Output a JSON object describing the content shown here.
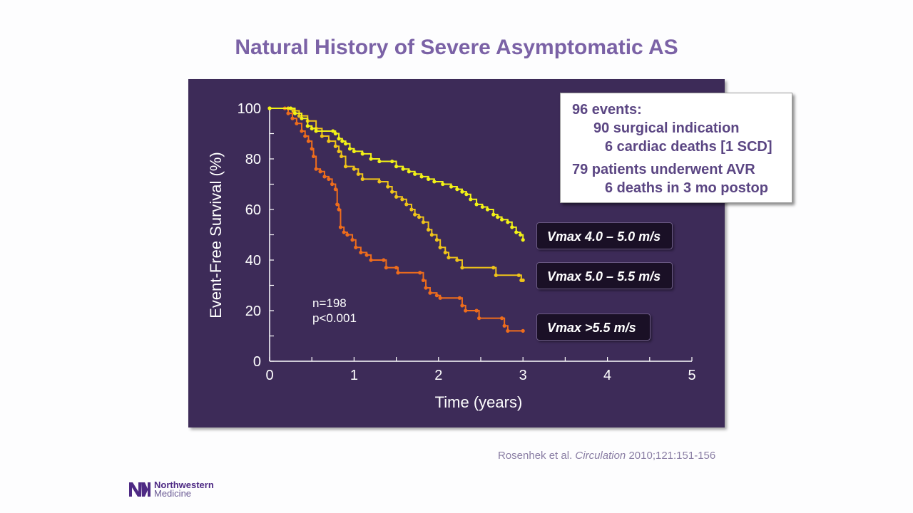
{
  "slide": {
    "title": "Natural History of Severe Asymptomatic AS",
    "citation_authors": "Rosenhek et al. ",
    "citation_journal": "Circulation",
    "citation_ref": " 2010;121:151-156",
    "logo": {
      "line1": "Northwestern",
      "line2": "Medicine",
      "icon": "nm-logo-icon"
    }
  },
  "infobox": {
    "lines": [
      "96 events:",
      "90 surgical indication",
      "6 cardiac deaths [1 SCD]",
      "79 patients underwent AVR",
      "6 deaths in 3 mo postop"
    ]
  },
  "annotation": {
    "n": "n=198",
    "p": "p<0.001"
  },
  "colors": {
    "panel_bg": "#3d2b58",
    "title": "#7b62a6",
    "series1": "#f2f216",
    "series2": "#f0c419",
    "series3": "#ee6c1c"
  },
  "chart_data": {
    "type": "line",
    "subtype": "kaplan-meier step",
    "title": "",
    "xlabel": "Time (years)",
    "ylabel": "Event-Free Survival (%)",
    "xlim": [
      0,
      5
    ],
    "ylim": [
      0,
      100
    ],
    "xticks": [
      0,
      1,
      2,
      3,
      4,
      5
    ],
    "yticks": [
      0,
      20,
      40,
      60,
      80,
      100
    ],
    "grid": false,
    "legend_placement": "right, next to curve ends",
    "series": [
      {
        "name": "Vmax 4.0 – 5.0 m/s",
        "color": "#f2f216",
        "points": [
          [
            0,
            100
          ],
          [
            0.25,
            100
          ],
          [
            0.3,
            98
          ],
          [
            0.38,
            96
          ],
          [
            0.45,
            93
          ],
          [
            0.5,
            92
          ],
          [
            0.55,
            91
          ],
          [
            0.75,
            91
          ],
          [
            0.78,
            90
          ],
          [
            0.82,
            88
          ],
          [
            0.86,
            87
          ],
          [
            0.9,
            86
          ],
          [
            0.95,
            84
          ],
          [
            1.0,
            83
          ],
          [
            1.1,
            82
          ],
          [
            1.2,
            80
          ],
          [
            1.3,
            79
          ],
          [
            1.45,
            79
          ],
          [
            1.5,
            77
          ],
          [
            1.58,
            76
          ],
          [
            1.65,
            75
          ],
          [
            1.72,
            74
          ],
          [
            1.8,
            73
          ],
          [
            1.88,
            72
          ],
          [
            1.95,
            71
          ],
          [
            2.05,
            70
          ],
          [
            2.15,
            69
          ],
          [
            2.22,
            68
          ],
          [
            2.28,
            67
          ],
          [
            2.33,
            66
          ],
          [
            2.38,
            64
          ],
          [
            2.45,
            62
          ],
          [
            2.52,
            61
          ],
          [
            2.58,
            60
          ],
          [
            2.65,
            58
          ],
          [
            2.7,
            57
          ],
          [
            2.75,
            56
          ],
          [
            2.82,
            55
          ],
          [
            2.87,
            53
          ],
          [
            2.92,
            51
          ],
          [
            2.97,
            50
          ],
          [
            3.0,
            48
          ]
        ]
      },
      {
        "name": "Vmax 5.0 – 5.5 m/s",
        "color": "#f0c419",
        "points": [
          [
            0,
            100
          ],
          [
            0.22,
            100
          ],
          [
            0.28,
            99
          ],
          [
            0.35,
            97
          ],
          [
            0.45,
            95
          ],
          [
            0.55,
            92
          ],
          [
            0.62,
            89
          ],
          [
            0.7,
            87
          ],
          [
            0.78,
            85
          ],
          [
            0.82,
            83
          ],
          [
            0.85,
            81
          ],
          [
            0.9,
            77
          ],
          [
            1.0,
            76
          ],
          [
            1.05,
            74
          ],
          [
            1.1,
            72
          ],
          [
            1.3,
            71
          ],
          [
            1.4,
            69
          ],
          [
            1.45,
            67
          ],
          [
            1.5,
            65
          ],
          [
            1.57,
            64
          ],
          [
            1.62,
            62
          ],
          [
            1.68,
            60
          ],
          [
            1.72,
            58
          ],
          [
            1.77,
            57
          ],
          [
            1.82,
            55
          ],
          [
            1.88,
            52
          ],
          [
            1.92,
            50
          ],
          [
            1.98,
            48
          ],
          [
            2.02,
            45
          ],
          [
            2.08,
            43
          ],
          [
            2.12,
            41
          ],
          [
            2.22,
            40
          ],
          [
            2.28,
            37
          ],
          [
            2.65,
            37
          ],
          [
            2.68,
            34
          ],
          [
            2.95,
            34
          ],
          [
            2.98,
            32
          ],
          [
            3.0,
            32
          ]
        ]
      },
      {
        "name": "Vmax >5.5 m/s",
        "color": "#ee6c1c",
        "points": [
          [
            0,
            100
          ],
          [
            0.18,
            100
          ],
          [
            0.22,
            98
          ],
          [
            0.27,
            96
          ],
          [
            0.32,
            94
          ],
          [
            0.38,
            91
          ],
          [
            0.42,
            89
          ],
          [
            0.46,
            87
          ],
          [
            0.5,
            84
          ],
          [
            0.52,
            81
          ],
          [
            0.55,
            76
          ],
          [
            0.6,
            75
          ],
          [
            0.65,
            73
          ],
          [
            0.7,
            72
          ],
          [
            0.74,
            70
          ],
          [
            0.78,
            68
          ],
          [
            0.8,
            62
          ],
          [
            0.82,
            60
          ],
          [
            0.84,
            53
          ],
          [
            0.88,
            51
          ],
          [
            0.92,
            50
          ],
          [
            0.98,
            48
          ],
          [
            1.02,
            45
          ],
          [
            1.08,
            43
          ],
          [
            1.15,
            42
          ],
          [
            1.2,
            40
          ],
          [
            1.35,
            40
          ],
          [
            1.38,
            37
          ],
          [
            1.5,
            37
          ],
          [
            1.52,
            35
          ],
          [
            1.78,
            35
          ],
          [
            1.82,
            32
          ],
          [
            1.85,
            29
          ],
          [
            1.9,
            27
          ],
          [
            1.98,
            26
          ],
          [
            2.02,
            25
          ],
          [
            2.25,
            25
          ],
          [
            2.28,
            22
          ],
          [
            2.32,
            20
          ],
          [
            2.45,
            20
          ],
          [
            2.48,
            17
          ],
          [
            2.75,
            17
          ],
          [
            2.78,
            14
          ],
          [
            2.82,
            12
          ],
          [
            3.0,
            12
          ]
        ]
      }
    ]
  }
}
